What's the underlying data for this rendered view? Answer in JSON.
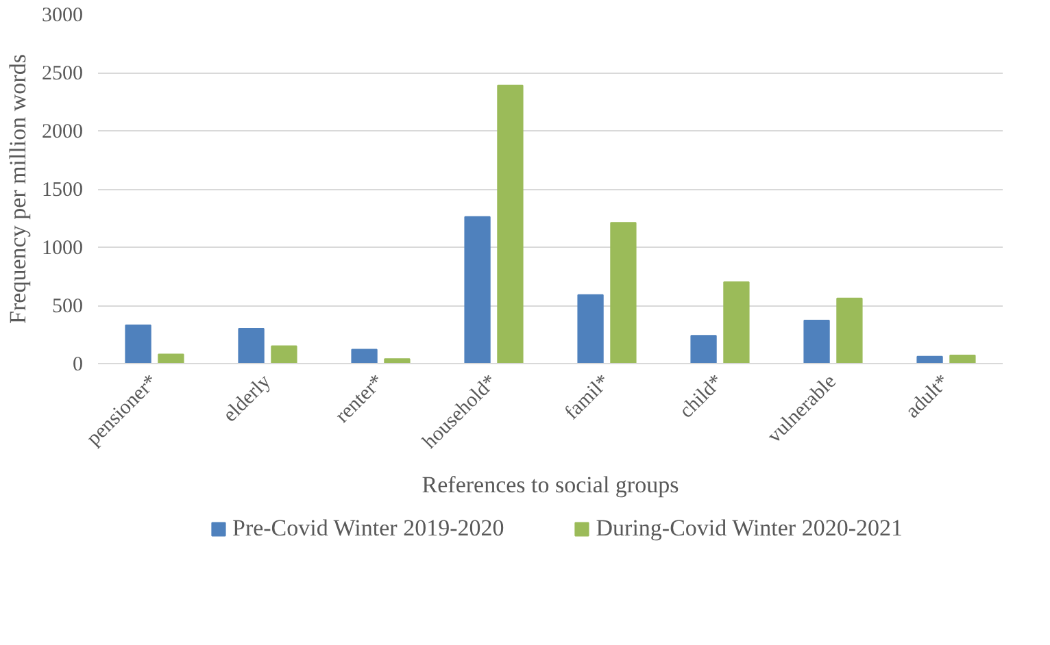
{
  "chart_data": {
    "type": "bar",
    "xlabel": "References to social groups",
    "ylabel": "Frequency per million words",
    "categories": [
      "pensioner*",
      "elderly",
      "renter*",
      "household*",
      "famil*",
      "child*",
      "vulnerable",
      "adult*"
    ],
    "series": [
      {
        "name": "Pre-Covid Winter 2019-2020",
        "color": "#4f81bd",
        "values": [
          330,
          300,
          120,
          1260,
          590,
          240,
          370,
          60
        ]
      },
      {
        "name": "During-Covid Winter 2020-2021",
        "color": "#9bbb59",
        "values": [
          80,
          150,
          40,
          2390,
          1210,
          700,
          560,
          70
        ]
      }
    ],
    "ylim": [
      0,
      3000
    ],
    "yticks": [
      0,
      500,
      1000,
      1500,
      2000,
      2500,
      3000
    ],
    "grid": "y",
    "legend": "bottom"
  }
}
